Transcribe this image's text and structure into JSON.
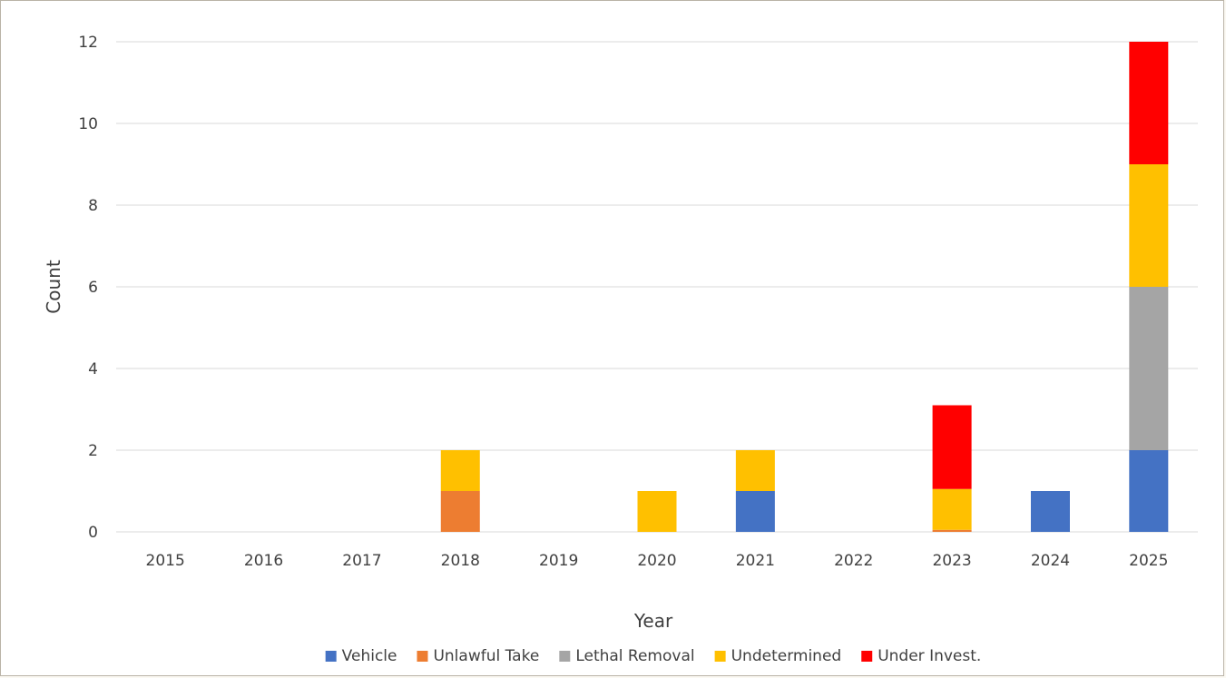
{
  "chart_data": {
    "type": "bar",
    "stacked": true,
    "xlabel": "Year",
    "ylabel": "Count",
    "categories": [
      "2015",
      "2016",
      "2017",
      "2018",
      "2019",
      "2020",
      "2021",
      "2022",
      "2023",
      "2024",
      "2025"
    ],
    "ylim": [
      0,
      12
    ],
    "yticks": [
      0,
      2,
      4,
      6,
      8,
      10,
      12
    ],
    "grid": true,
    "legend_position": "bottom",
    "series": [
      {
        "name": "Vehicle",
        "color": "#4472c4",
        "values": [
          0,
          0,
          0,
          0,
          0,
          0,
          1,
          0,
          0,
          1,
          2
        ]
      },
      {
        "name": "Unlawful Take",
        "color": "#ed7d31",
        "values": [
          0,
          0,
          0,
          1,
          0,
          0,
          0,
          0,
          0.05,
          0,
          0
        ]
      },
      {
        "name": "Lethal Removal",
        "color": "#a5a5a5",
        "values": [
          0,
          0,
          0,
          0,
          0,
          0,
          0,
          0,
          0,
          0,
          4
        ]
      },
      {
        "name": "Undetermined",
        "color": "#ffc000",
        "values": [
          0,
          0,
          0,
          1,
          0,
          1,
          1,
          0,
          1,
          0,
          3
        ]
      },
      {
        "name": "Under Invest.",
        "color": "#ff0000",
        "values": [
          0,
          0,
          0,
          0,
          0,
          0,
          0,
          0,
          2.05,
          0,
          3
        ]
      }
    ]
  }
}
